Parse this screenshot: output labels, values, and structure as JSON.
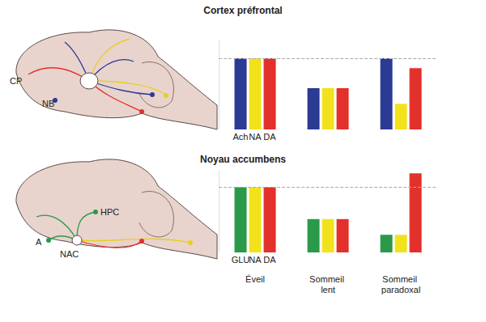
{
  "chart_data": [
    {
      "type": "bar",
      "title": "Cortex préfrontal",
      "categories": [
        null,
        null,
        null
      ],
      "series": [
        {
          "name": "Ach",
          "color": "#2b3a93",
          "values": [
            100,
            58,
            100
          ]
        },
        {
          "name": "NA",
          "color": "#f2e21c",
          "values": [
            100,
            58,
            36
          ]
        },
        {
          "name": "DA",
          "color": "#e3302b",
          "values": [
            100,
            58,
            86
          ]
        }
      ],
      "ylim": [
        0,
        125
      ],
      "tick_labels": false
    },
    {
      "type": "bar",
      "title": "Noyau accumbens",
      "categories": [
        "Éveil",
        "Sommeil lent",
        "Sommeil paradoxal"
      ],
      "series": [
        {
          "name": "GLU",
          "color": "#2a9a4a",
          "values": [
            100,
            51,
            27
          ]
        },
        {
          "name": "NA",
          "color": "#f2e21c",
          "values": [
            100,
            51,
            27
          ]
        },
        {
          "name": "DA",
          "color": "#e3302b",
          "values": [
            100,
            51,
            121
          ]
        }
      ],
      "ylim": [
        0,
        125
      ],
      "tick_labels": "x"
    }
  ],
  "diagrams": [
    {
      "labels": [
        "CP",
        "NB"
      ]
    },
    {
      "labels": [
        "HPC",
        "A",
        "NAC"
      ]
    }
  ]
}
